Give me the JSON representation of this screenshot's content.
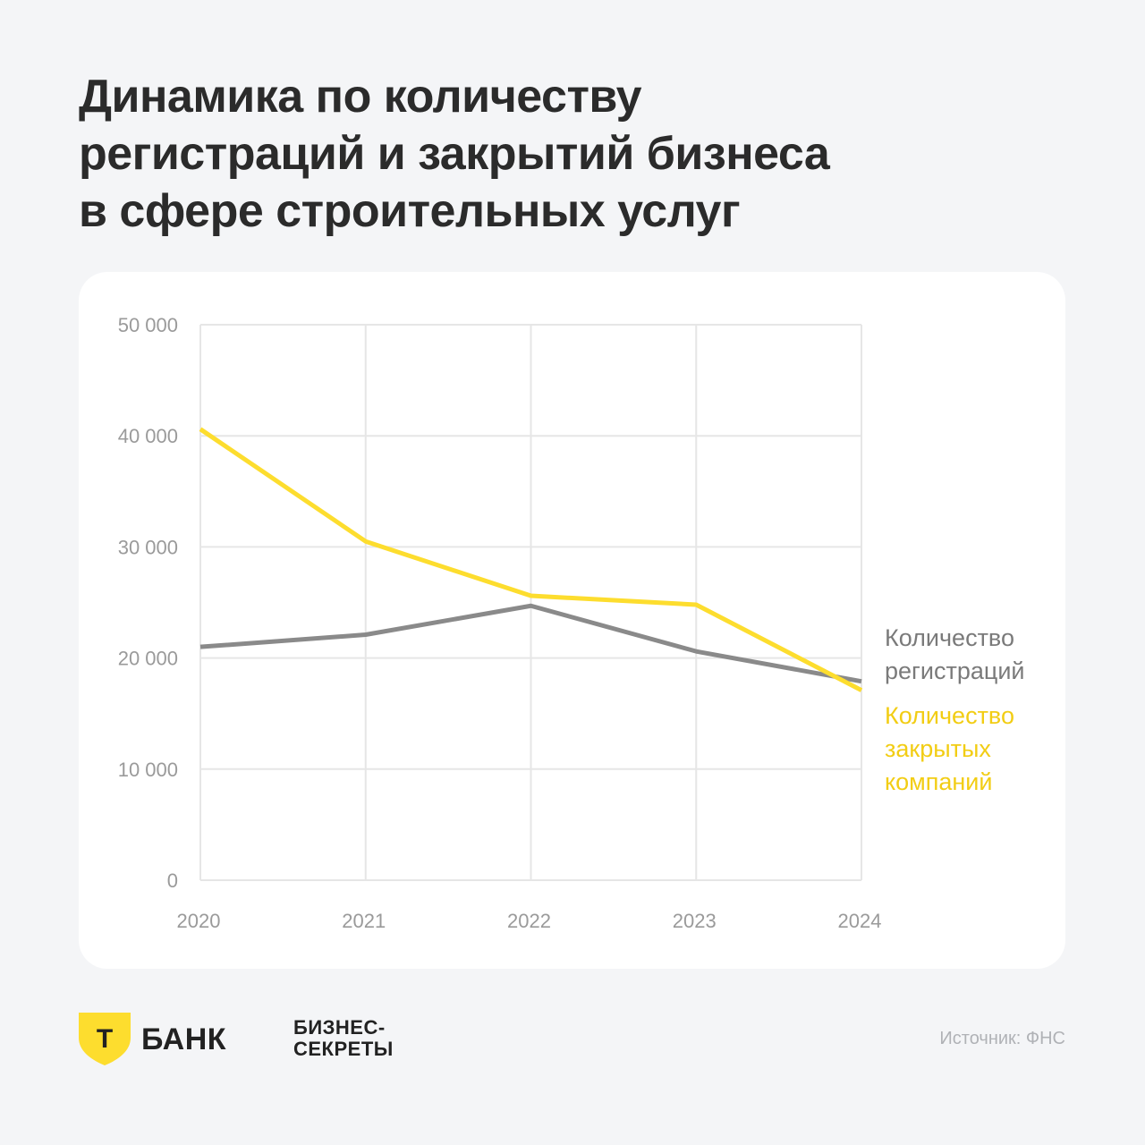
{
  "header": {
    "title_lines": [
      "Динамика по количеству",
      "регистраций и закрытий бизнеса",
      "в сфере строительных услуг"
    ]
  },
  "chart_data": {
    "type": "line",
    "title": "Динамика по количеству регистраций и закрытий бизнеса в сфере строительных услуг",
    "x": [
      "2020",
      "2021",
      "2022",
      "2023",
      "2024"
    ],
    "ylim": [
      0,
      50000
    ],
    "yticks": [
      0,
      10000,
      20000,
      30000,
      40000,
      50000
    ],
    "ytick_labels": [
      "0",
      "10 000",
      "20 000",
      "30 000",
      "40 000",
      "50 000"
    ],
    "grid": true,
    "series": [
      {
        "name": "Количество регистраций",
        "legend_lines": [
          "Количество",
          "регистраций"
        ],
        "color": "#8a8a8a",
        "values": [
          21000,
          22100,
          24700,
          20600,
          17900
        ]
      },
      {
        "name": "Количество закрытых компаний",
        "legend_lines": [
          "Количество",
          "закрытых",
          "компаний"
        ],
        "color": "#fddd2e",
        "values": [
          40600,
          30500,
          25600,
          24800,
          17100
        ]
      }
    ]
  },
  "footer": {
    "logo_letter": "Т",
    "bank_name": "БАНК",
    "secrets_lines": [
      "БИЗНЕС-",
      "СЕКРЕТЫ"
    ],
    "source": "Источник: ФНС"
  },
  "colors": {
    "background": "#f4f5f7",
    "card": "#ffffff",
    "grid": "#e6e6e6",
    "axis_text": "#9a9a9a",
    "brand_yellow": "#fddd2e"
  }
}
